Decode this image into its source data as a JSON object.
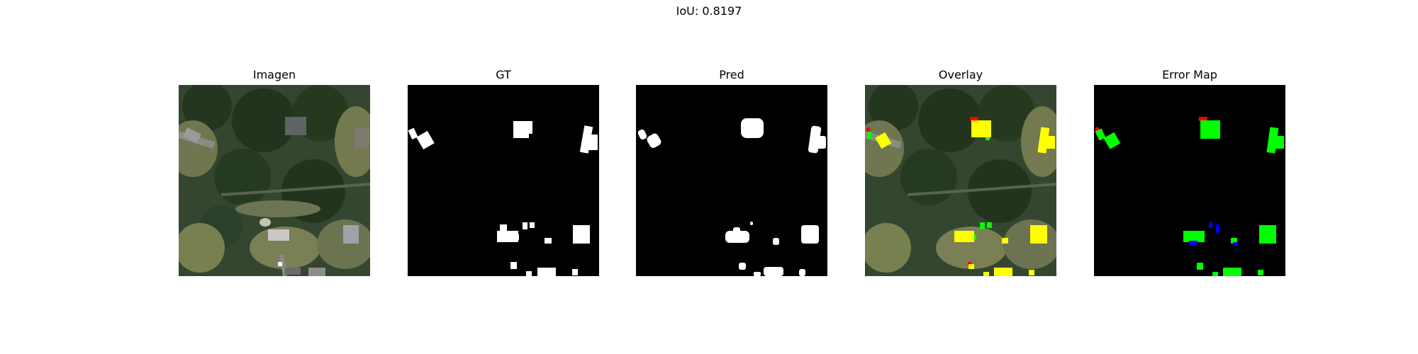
{
  "figure": {
    "suptitle": "IoU: 0.8197"
  },
  "panels": [
    {
      "title": "Imagen",
      "kind": "aerial-image"
    },
    {
      "title": "GT",
      "kind": "ground-truth-mask"
    },
    {
      "title": "Pred",
      "kind": "prediction-mask"
    },
    {
      "title": "Overlay",
      "kind": "overlay"
    },
    {
      "title": "Error Map",
      "kind": "error-map"
    }
  ],
  "colors": {
    "mask_foreground": "#ffffff",
    "mask_background": "#000000",
    "true_positive": "#ffff00",
    "false_positive_overlay": "#ff0000",
    "false_negative_overlay": "#00ff00",
    "error_tp": "#00ff00",
    "error_fp": "#ff0000",
    "error_fn": "#0000ff",
    "aerial_forest": "#2d3e2a",
    "aerial_clearing": "#76804f"
  }
}
